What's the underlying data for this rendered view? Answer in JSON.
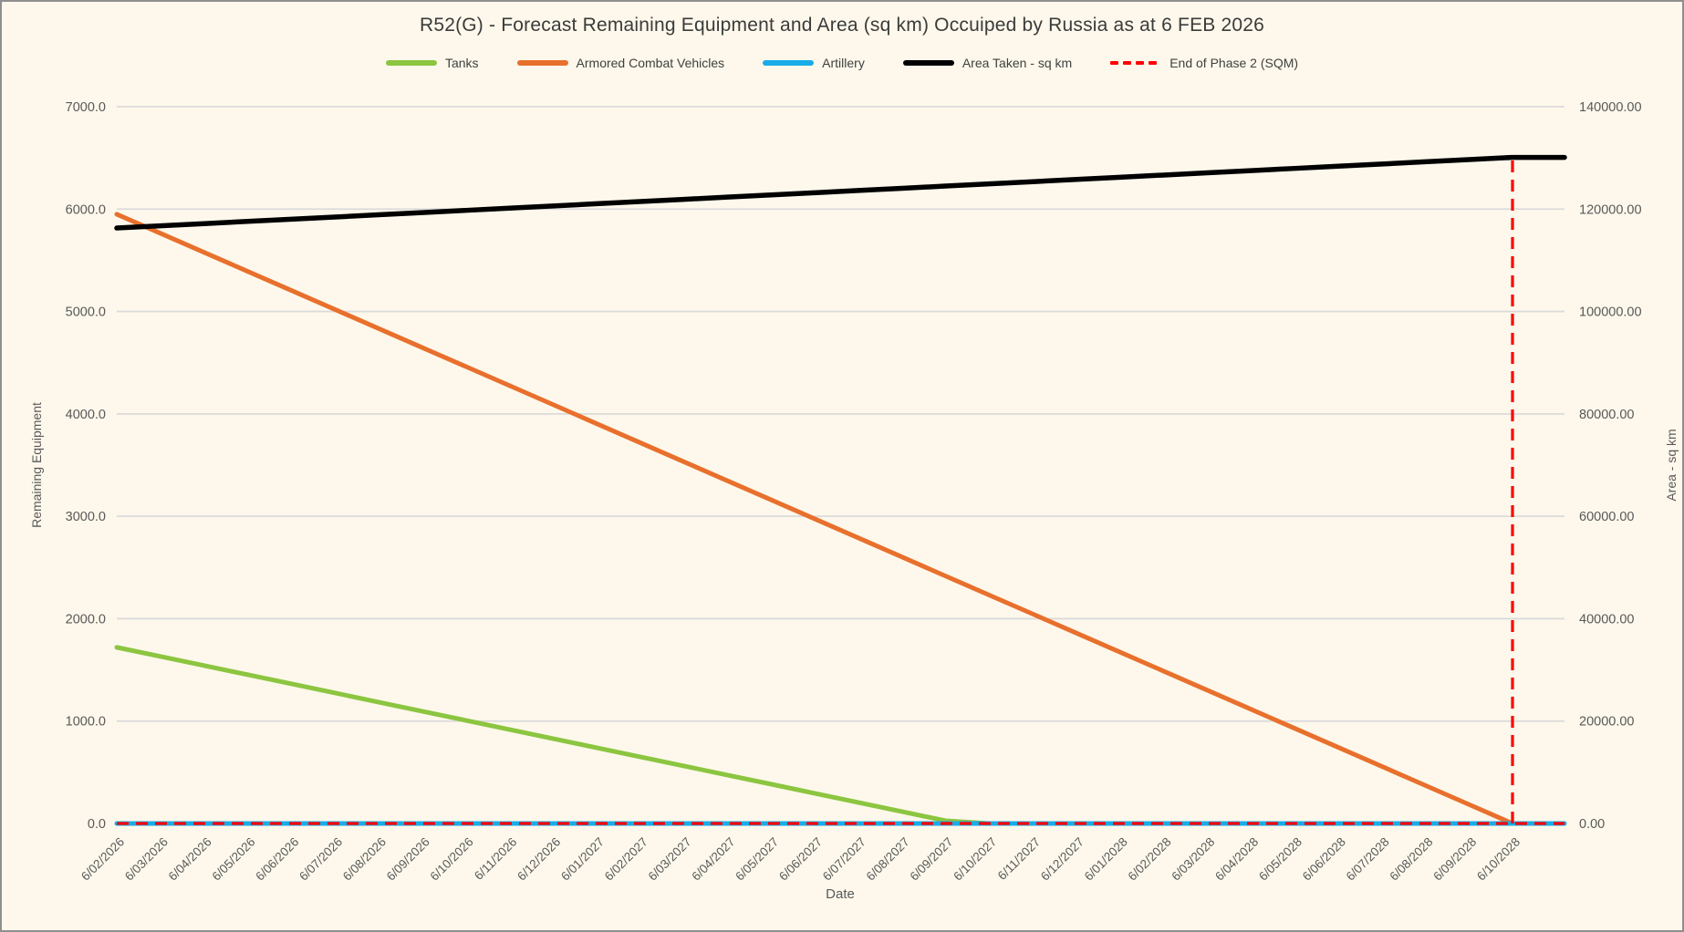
{
  "colors": {
    "background": "#FDF8EB",
    "gridline": "#DBDBDB",
    "tick_text": "#595959",
    "title_text": "#3B3B3B"
  },
  "chart_data": {
    "type": "line",
    "title": "R52(G) - Forecast Remaining Equipment and Area (sq km) Occuiped by Russia as at 6 FEB 2026",
    "xlabel": "Date",
    "ylabel_left": "Remaining Equipment",
    "ylabel_right": "Area - sq km",
    "grid": true,
    "legend_position": "top",
    "left_axis": {
      "min": 0,
      "max": 7000,
      "step": 1000,
      "tick_labels": [
        "0.0",
        "1000.0",
        "2000.0",
        "3000.0",
        "4000.0",
        "5000.0",
        "6000.0",
        "7000.0"
      ]
    },
    "right_axis": {
      "min": 0,
      "max": 140000,
      "step": 20000,
      "tick_labels": [
        "0.00",
        "20000.00",
        "40000.00",
        "60000.00",
        "80000.00",
        "100000.00",
        "120000.00",
        "140000.00"
      ]
    },
    "x_categories": [
      "6/02/2026",
      "6/03/2026",
      "6/04/2026",
      "6/05/2026",
      "6/06/2026",
      "6/07/2026",
      "6/08/2026",
      "6/09/2026",
      "6/10/2026",
      "6/11/2026",
      "6/12/2026",
      "6/01/2027",
      "6/02/2027",
      "6/03/2027",
      "6/04/2027",
      "6/05/2027",
      "6/06/2027",
      "6/07/2027",
      "6/08/2027",
      "6/09/2027",
      "6/10/2027",
      "6/11/2027",
      "6/12/2027",
      "6/01/2028",
      "6/02/2028",
      "6/03/2028",
      "6/04/2028",
      "6/05/2028",
      "6/06/2028",
      "6/07/2028",
      "6/08/2028",
      "6/09/2028",
      "6/10/2028"
    ],
    "series": [
      {
        "name": "Tanks",
        "color": "#8CC540",
        "axis": "left",
        "style": "solid",
        "values": [
          1720,
          1631,
          1542,
          1453,
          1364,
          1275,
          1185,
          1096,
          1007,
          918,
          829,
          740,
          651,
          562,
          473,
          384,
          294,
          205,
          116,
          27,
          0,
          0,
          0,
          0,
          0,
          0,
          0,
          0,
          0,
          0,
          0,
          0,
          0
        ]
      },
      {
        "name": "Armored Combat Vehicles",
        "color": "#E8702D",
        "axis": "left",
        "style": "solid",
        "values": [
          5950,
          5764,
          5578,
          5392,
          5206,
          5020,
          4834,
          4648,
          4463,
          4277,
          4091,
          3905,
          3719,
          3533,
          3347,
          3161,
          2975,
          2789,
          2603,
          2417,
          2231,
          2046,
          1860,
          1674,
          1488,
          1302,
          1116,
          930,
          744,
          558,
          372,
          186,
          0
        ]
      },
      {
        "name": "Artillery",
        "color": "#18ACE8",
        "axis": "left",
        "style": "solid",
        "extends_to_plot_edge": true,
        "values": [
          0,
          0,
          0,
          0,
          0,
          0,
          0,
          0,
          0,
          0,
          0,
          0,
          0,
          0,
          0,
          0,
          0,
          0,
          0,
          0,
          0,
          0,
          0,
          0,
          0,
          0,
          0,
          0,
          0,
          0,
          0,
          0,
          0
        ]
      },
      {
        "name": "Area Taken - sq km",
        "color": "#000000",
        "axis": "right",
        "style": "solid",
        "extends_to_plot_edge": true,
        "values": [
          116300,
          116731,
          117163,
          117594,
          118025,
          118456,
          118888,
          119319,
          119750,
          120181,
          120613,
          121044,
          121475,
          121906,
          122338,
          122769,
          123200,
          123631,
          124063,
          124494,
          124925,
          125356,
          125788,
          126219,
          126650,
          127081,
          127513,
          127944,
          128375,
          128806,
          129238,
          129669,
          130100
        ]
      },
      {
        "name": "End of Phase 2 (SQM)",
        "color": "#FF0000",
        "axis": "right",
        "style": "dashed",
        "extends_to_plot_edge": true,
        "baseline_value": 0,
        "spike": {
          "category": "6/10/2028",
          "value": 130100
        }
      }
    ]
  }
}
